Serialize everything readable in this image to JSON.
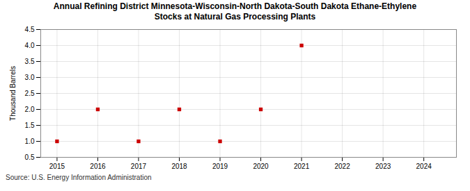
{
  "chart_data": {
    "type": "scatter",
    "title": "Annual Refining District Minnesota-Wisconsin-North Dakota-South Dakota Ethane-Ethylene\nStocks at Natural Gas Processing Plants",
    "ylabel": "Thousand Barrels",
    "source": "Source: U.S. Energy Information Administration",
    "x": [
      2015,
      2016,
      2017,
      2018,
      2019,
      2020,
      2021
    ],
    "values": [
      1.0,
      2.0,
      1.0,
      2.0,
      1.0,
      2.0,
      4.0
    ],
    "color": "#CC0000",
    "marker": "square",
    "xlim": [
      2014.6,
      2024.8
    ],
    "xticks": [
      2015,
      2016,
      2017,
      2018,
      2019,
      2020,
      2021,
      2022,
      2023,
      2024
    ],
    "ylim": [
      0.5,
      4.5
    ],
    "yticks": [
      0.5,
      {
        "value": 1.0,
        "label": "1.0"
      },
      1.5,
      {
        "value": 2.0,
        "label": "2.0"
      },
      2.5,
      {
        "value": 3.0,
        "label": "3.0"
      },
      3.5,
      {
        "value": 4.0,
        "label": "4.0"
      },
      4.5
    ],
    "grid": true
  }
}
